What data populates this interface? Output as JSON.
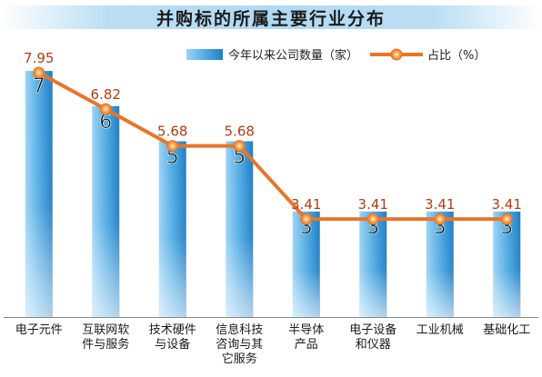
{
  "chart_data": {
    "type": "bar",
    "title": "并购标的所属主要行业分布",
    "categories": [
      "电子元件",
      "互联网软件与服务",
      "技术硬件与设备",
      "信息科技咨询与其它服务",
      "半导体产品",
      "电子设备和仪器",
      "工业机械",
      "基础化工"
    ],
    "category_lines": [
      [
        "电子元件"
      ],
      [
        "互联网软",
        "件与服务"
      ],
      [
        "技术硬件",
        "与设备"
      ],
      [
        "信息科技",
        "咨询与其",
        "它服务"
      ],
      [
        "半导体",
        "产品"
      ],
      [
        "电子设备",
        "和仪器"
      ],
      [
        "工业机械"
      ],
      [
        "基础化工"
      ]
    ],
    "series": [
      {
        "name": "今年以来公司数量（家）",
        "type": "bar",
        "values": [
          7,
          6,
          5,
          5,
          3,
          3,
          3,
          3
        ],
        "color": "#3a9ad9"
      },
      {
        "name": "占比（%）",
        "type": "line",
        "values": [
          7.95,
          6.82,
          5.68,
          5.68,
          3.41,
          3.41,
          3.41,
          3.41
        ],
        "value_labels": [
          "7.95",
          "6.82",
          "5.68",
          "5.68",
          "3.41",
          "3.41",
          "3.41",
          "3.41"
        ],
        "color": "#e8752a"
      }
    ],
    "legend_position": "top-right",
    "grid": false
  }
}
